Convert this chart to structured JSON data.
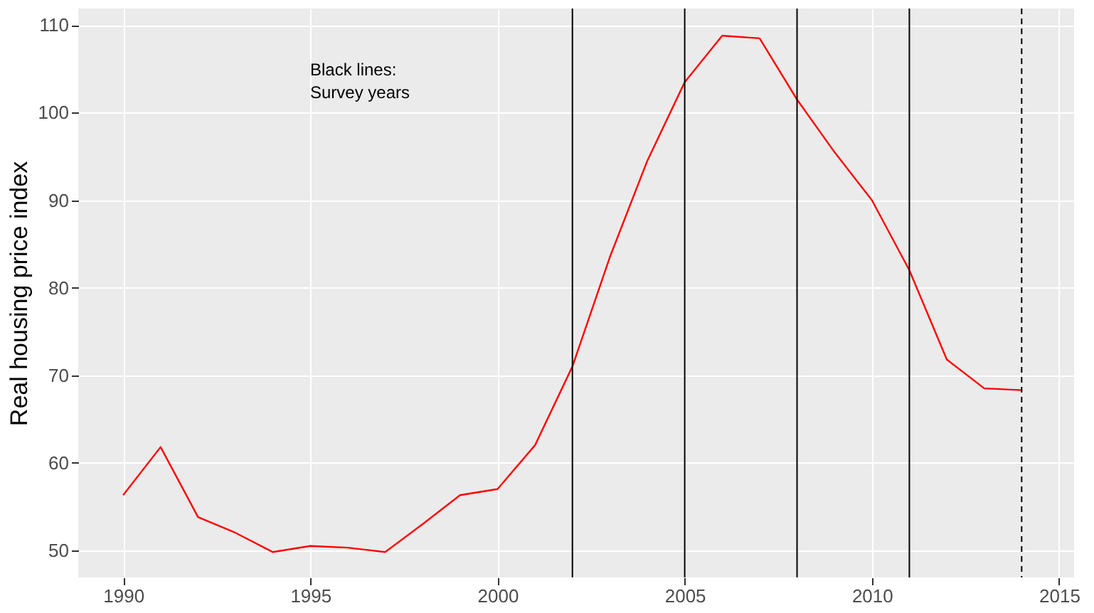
{
  "chart_data": {
    "type": "line",
    "ylabel": "Real housing price index",
    "x": [
      1990,
      1991,
      1992,
      1993,
      1994,
      1995,
      1996,
      1997,
      1998,
      1999,
      2000,
      2001,
      2002,
      2003,
      2004,
      2005,
      2006,
      2007,
      2008,
      2009,
      2010,
      2011,
      2012,
      2013,
      2014
    ],
    "series": [
      {
        "color": "#ff0000",
        "values": [
          56.3,
          61.8,
          53.8,
          52,
          49.8,
          50.5,
          50.3,
          49.8,
          53,
          56.3,
          57,
          62,
          71,
          83.5,
          94.5,
          103.5,
          108.8,
          108.5,
          101.5,
          95.5,
          90,
          82,
          71.8,
          68.5,
          68.3
        ]
      }
    ],
    "xlim": [
      1988.8,
      2015.4
    ],
    "xticks": [
      1990,
      1995,
      2000,
      2005,
      2010,
      2015
    ],
    "ylim": [
      46.9,
      111.9
    ],
    "yticks": [
      50,
      60,
      70,
      80,
      90,
      100,
      110
    ],
    "ref_lines": [
      {
        "axis": "x",
        "value": 2002,
        "color": "#000000",
        "line_style": "solid"
      },
      {
        "axis": "x",
        "value": 2005,
        "color": "#000000",
        "line_style": "solid"
      },
      {
        "axis": "x",
        "value": 2008,
        "color": "#000000",
        "line_style": "solid"
      },
      {
        "axis": "x",
        "value": 2011,
        "color": "#000000",
        "line_style": "solid"
      },
      {
        "axis": "x",
        "value": 2014,
        "color": "#000000",
        "line_style": "dashed"
      }
    ],
    "annotations": [
      "Black lines:\nSurvey years"
    ],
    "grid": true,
    "marker": "none",
    "line_style": "solid"
  }
}
